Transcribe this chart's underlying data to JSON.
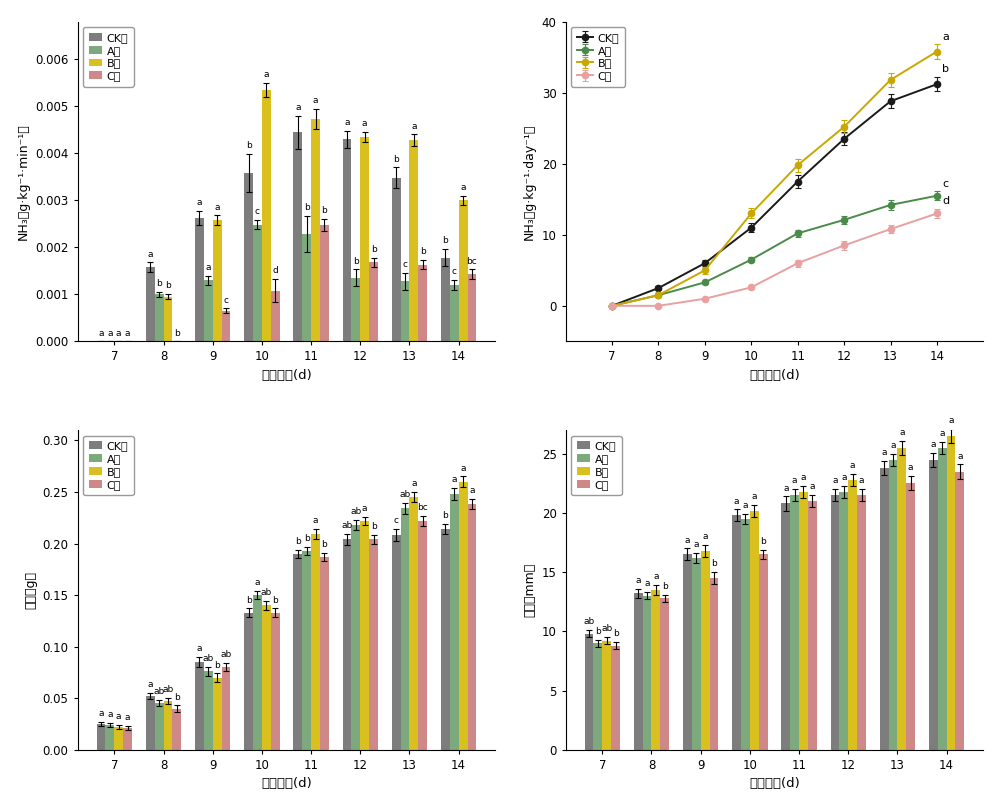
{
  "colors": {
    "CK_bar": "#6b6b6b",
    "A_bar": "#6b9e6b",
    "B_bar": "#d4b800",
    "C_bar": "#c87878",
    "CK_line": "#1a1a1a",
    "A_line": "#4a8a4a",
    "B_line": "#c8a800",
    "C_line": "#e8a0a0"
  },
  "bar_width": 0.18,
  "days": [
    7,
    8,
    9,
    10,
    11,
    12,
    13,
    14
  ],
  "panel1": {
    "xlabel": "幼虫日龄(d)",
    "ylabel": "NH₃（g·kg⁻¹·min⁻¹）",
    "ylim": [
      0,
      0.0068
    ],
    "yticks": [
      0.0,
      0.001,
      0.002,
      0.003,
      0.004,
      0.005,
      0.006
    ],
    "CK_mean": [
      0.0,
      0.00158,
      0.00263,
      0.00358,
      0.00445,
      0.0043,
      0.00348,
      0.00178
    ],
    "CK_err": [
      0.0,
      0.0001,
      0.00015,
      0.0004,
      0.00035,
      0.00018,
      0.00022,
      0.00018
    ],
    "A_mean": [
      0.0,
      0.001,
      0.0013,
      0.00248,
      0.00228,
      0.00135,
      0.00128,
      0.0012
    ],
    "A_err": [
      0.0,
      5e-05,
      0.0001,
      0.0001,
      0.00038,
      0.00018,
      0.00018,
      0.0001
    ],
    "B_mean": [
      0.0,
      0.00095,
      0.00258,
      0.00535,
      0.00473,
      0.00435,
      0.00428,
      0.003
    ],
    "B_err": [
      0.0,
      5e-05,
      0.0001,
      0.00015,
      0.00022,
      0.0001,
      0.00012,
      0.0001
    ],
    "C_mean": [
      0.0,
      0.0,
      0.00065,
      0.00108,
      0.00248,
      0.00168,
      0.00163,
      0.00143
    ],
    "C_err": [
      0.0,
      0.0,
      5e-05,
      0.00025,
      0.00013,
      0.0001,
      0.0001,
      0.0001
    ],
    "CK_labels": [
      "a",
      "a",
      "a",
      "b",
      "a",
      "a",
      "b",
      "b"
    ],
    "A_labels": [
      "a",
      "b",
      "a",
      "c",
      "b",
      "b",
      "c",
      "c"
    ],
    "B_labels": [
      "a",
      "b",
      "a",
      "a",
      "a",
      "a",
      "a",
      "a"
    ],
    "C_labels": [
      "a",
      "b",
      "c",
      "d",
      "b",
      "b",
      "b",
      "bc"
    ]
  },
  "panel2": {
    "xlabel": "幼虫日龄(d)",
    "ylabel": "NH₃（g·kg⁻¹·day⁻¹）",
    "xlim": [
      6,
      15
    ],
    "ylim": [
      -5,
      40
    ],
    "yticks": [
      0,
      10,
      20,
      30,
      40
    ],
    "CK_mean": [
      0.0,
      2.5,
      6.0,
      11.0,
      17.5,
      23.5,
      28.8,
      31.2
    ],
    "CK_err": [
      0.15,
      0.25,
      0.4,
      0.6,
      0.9,
      0.9,
      1.0,
      1.0
    ],
    "A_mean": [
      0.0,
      1.5,
      3.3,
      6.5,
      10.2,
      12.1,
      14.2,
      15.5
    ],
    "A_err": [
      0.1,
      0.2,
      0.25,
      0.4,
      0.5,
      0.6,
      0.7,
      0.6
    ],
    "B_mean": [
      0.0,
      1.5,
      5.0,
      13.0,
      19.8,
      25.2,
      31.8,
      35.8
    ],
    "B_err": [
      0.15,
      0.25,
      0.5,
      0.7,
      0.9,
      0.9,
      1.0,
      1.0
    ],
    "C_mean": [
      0.0,
      0.0,
      1.0,
      2.6,
      6.0,
      8.5,
      10.8,
      13.0
    ],
    "C_err": [
      0.1,
      0.1,
      0.15,
      0.25,
      0.5,
      0.6,
      0.6,
      0.6
    ],
    "CK_labels": [
      "",
      "",
      "",
      "",
      "",
      "",
      "",
      "b"
    ],
    "A_labels": [
      "",
      "",
      "",
      "",
      "",
      "",
      "",
      "c"
    ],
    "B_labels": [
      "",
      "",
      "",
      "",
      "",
      "",
      "",
      "a"
    ],
    "C_labels": [
      "",
      "",
      "",
      "",
      "",
      "",
      "",
      "d"
    ]
  },
  "panel3": {
    "xlabel": "幼虫日龄(d)",
    "ylabel": "体重（g）",
    "ylim": [
      0,
      0.31
    ],
    "yticks": [
      0.0,
      0.05,
      0.1,
      0.15,
      0.2,
      0.25,
      0.3
    ],
    "CK_mean": [
      0.025,
      0.052,
      0.085,
      0.133,
      0.19,
      0.204,
      0.208,
      0.214
    ],
    "CK_err": [
      0.002,
      0.003,
      0.005,
      0.004,
      0.004,
      0.005,
      0.006,
      0.005
    ],
    "A_mean": [
      0.024,
      0.045,
      0.076,
      0.15,
      0.193,
      0.218,
      0.234,
      0.248
    ],
    "A_err": [
      0.002,
      0.003,
      0.004,
      0.004,
      0.004,
      0.005,
      0.005,
      0.006
    ],
    "B_mean": [
      0.022,
      0.047,
      0.07,
      0.14,
      0.209,
      0.222,
      0.245,
      0.26
    ],
    "B_err": [
      0.002,
      0.003,
      0.004,
      0.004,
      0.005,
      0.004,
      0.005,
      0.005
    ],
    "C_mean": [
      0.021,
      0.04,
      0.08,
      0.133,
      0.187,
      0.204,
      0.222,
      0.238
    ],
    "C_err": [
      0.002,
      0.003,
      0.004,
      0.004,
      0.004,
      0.004,
      0.005,
      0.005
    ],
    "CK_labels": [
      "a",
      "a",
      "a",
      "b",
      "b",
      "ab",
      "c",
      "b"
    ],
    "A_labels": [
      "a",
      "ab",
      "ab",
      "a",
      "b",
      "ab",
      "ab",
      "a"
    ],
    "B_labels": [
      "a",
      "ab",
      "b",
      "ab",
      "a",
      "a",
      "a",
      "a"
    ],
    "C_labels": [
      "a",
      "b",
      "ab",
      "b",
      "b",
      "b",
      "bc",
      "a"
    ]
  },
  "panel4": {
    "xlabel": "幼虫日龄(d)",
    "ylabel": "体长（mm）",
    "ylim": [
      0,
      27
    ],
    "yticks": [
      0,
      5,
      10,
      15,
      20,
      25
    ],
    "CK_mean": [
      9.8,
      13.2,
      16.5,
      19.8,
      20.8,
      21.5,
      23.8,
      24.5
    ],
    "CK_err": [
      0.3,
      0.4,
      0.5,
      0.5,
      0.6,
      0.5,
      0.6,
      0.6
    ],
    "A_mean": [
      9.0,
      13.0,
      16.2,
      19.5,
      21.5,
      21.8,
      24.5,
      25.5
    ],
    "A_err": [
      0.3,
      0.3,
      0.4,
      0.4,
      0.5,
      0.5,
      0.5,
      0.5
    ],
    "B_mean": [
      9.2,
      13.5,
      16.8,
      20.2,
      21.8,
      22.8,
      25.5,
      26.5
    ],
    "B_err": [
      0.3,
      0.4,
      0.5,
      0.5,
      0.5,
      0.5,
      0.6,
      0.6
    ],
    "C_mean": [
      8.8,
      12.8,
      14.5,
      16.5,
      21.0,
      21.5,
      22.5,
      23.5
    ],
    "C_err": [
      0.3,
      0.3,
      0.5,
      0.4,
      0.5,
      0.5,
      0.6,
      0.6
    ],
    "CK_labels": [
      "ab",
      "a",
      "a",
      "a",
      "a",
      "a",
      "a",
      "a"
    ],
    "A_labels": [
      "b",
      "a",
      "a",
      "a",
      "a",
      "a",
      "a",
      "a"
    ],
    "B_labels": [
      "ab",
      "a",
      "a",
      "a",
      "a",
      "a",
      "a",
      "a"
    ],
    "C_labels": [
      "b",
      "b",
      "b",
      "b",
      "a",
      "a",
      "a",
      "a"
    ]
  }
}
